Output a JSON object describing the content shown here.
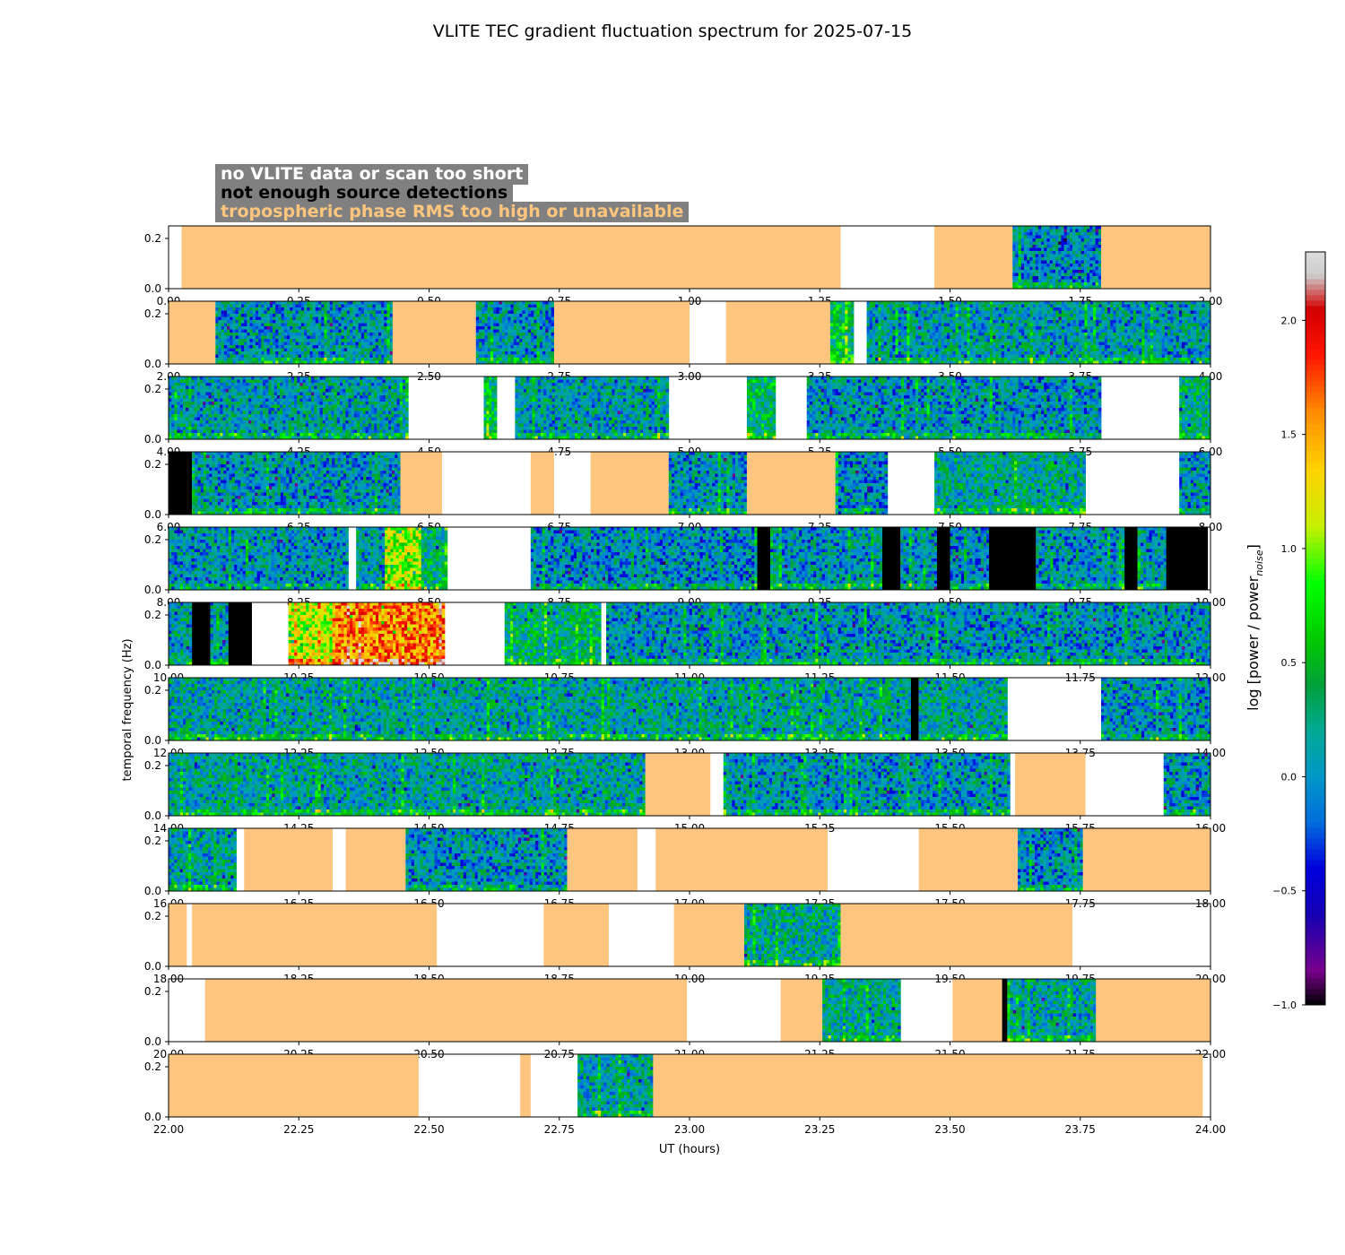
{
  "title": "VLITE TEC gradient fluctuation spectrum for 2025-07-15",
  "legend": [
    {
      "label": "no VLITE data or scan too short",
      "text_color": "#ffffff"
    },
    {
      "label": "not enough source detections",
      "text_color": "#000000"
    },
    {
      "label": "tropospheric phase RMS too high or unavailable",
      "text_color": "#fdc57e"
    }
  ],
  "colors": {
    "no_data": "#ffffff",
    "not_enough_detections": "#000000",
    "troposphere": "#fdc57e",
    "legend_bg": "#808080"
  },
  "chart_data": {
    "type": "heatmap",
    "title": "VLITE TEC gradient fluctuation spectrum for 2025-07-15",
    "xlabel": "UT (hours)",
    "ylabel": "temporal frequency (Hz)",
    "ylim": [
      0,
      0.25
    ],
    "yticks": [
      "0.0",
      "0.2"
    ],
    "colorbar": {
      "label": "log [power / power",
      "label_sub": "noise",
      "label_end": "]",
      "range": [
        -1.0,
        2.3
      ],
      "ticks": [
        "−1.0",
        "−0.5",
        "0.0",
        "0.5",
        "1.0",
        "1.5",
        "2.0"
      ],
      "tick_values": [
        -1.0,
        -0.5,
        0.0,
        0.5,
        1.0,
        1.5,
        2.0
      ]
    },
    "rows": [
      {
        "range": [
          0,
          2
        ],
        "xticks": [
          "0.00",
          "0.25",
          "0.50",
          "0.75",
          "1.00",
          "1.25",
          "1.50",
          "1.75",
          "2.00"
        ],
        "segments": [
          {
            "start": 0.0,
            "end": 0.025,
            "kind": "white"
          },
          {
            "start": 0.025,
            "end": 1.29,
            "kind": "orange"
          },
          {
            "start": 1.29,
            "end": 1.47,
            "kind": "white"
          },
          {
            "start": 1.47,
            "end": 1.62,
            "kind": "orange"
          },
          {
            "start": 1.62,
            "end": 1.79,
            "kind": "data",
            "level": 0.0
          },
          {
            "start": 1.79,
            "end": 2.0,
            "kind": "orange"
          }
        ]
      },
      {
        "range": [
          2,
          4
        ],
        "xticks": [
          "2.00",
          "2.25",
          "2.50",
          "2.75",
          "3.00",
          "3.25",
          "3.50",
          "3.75",
          "4.00"
        ],
        "segments": [
          {
            "start": 2.0,
            "end": 2.09,
            "kind": "orange"
          },
          {
            "start": 2.09,
            "end": 2.43,
            "kind": "data",
            "level": 0.05
          },
          {
            "start": 2.43,
            "end": 2.59,
            "kind": "orange"
          },
          {
            "start": 2.59,
            "end": 2.74,
            "kind": "data",
            "level": 0.05
          },
          {
            "start": 2.74,
            "end": 3.0,
            "kind": "orange"
          },
          {
            "start": 3.0,
            "end": 3.07,
            "kind": "white"
          },
          {
            "start": 3.07,
            "end": 3.27,
            "kind": "orange"
          },
          {
            "start": 3.27,
            "end": 3.315,
            "kind": "data",
            "level": 0.5
          },
          {
            "start": 3.315,
            "end": 3.34,
            "kind": "white"
          },
          {
            "start": 3.34,
            "end": 4.0,
            "kind": "data",
            "level": 0.1
          }
        ]
      },
      {
        "range": [
          4,
          6
        ],
        "xticks": [
          "4.00",
          "4.25",
          "4.50",
          "4.75",
          "5.00",
          "5.25",
          "5.50",
          "5.75",
          "6.00"
        ],
        "segments": [
          {
            "start": 4.0,
            "end": 4.46,
            "kind": "data",
            "level": 0.1
          },
          {
            "start": 4.46,
            "end": 4.605,
            "kind": "white"
          },
          {
            "start": 4.605,
            "end": 4.63,
            "kind": "data",
            "level": 0.4
          },
          {
            "start": 4.63,
            "end": 4.665,
            "kind": "white"
          },
          {
            "start": 4.665,
            "end": 4.96,
            "kind": "data",
            "level": 0.1
          },
          {
            "start": 4.96,
            "end": 5.11,
            "kind": "white"
          },
          {
            "start": 5.11,
            "end": 5.165,
            "kind": "data",
            "level": 0.4
          },
          {
            "start": 5.165,
            "end": 5.225,
            "kind": "white"
          },
          {
            "start": 5.225,
            "end": 5.79,
            "kind": "data",
            "level": 0.05
          },
          {
            "start": 5.79,
            "end": 5.94,
            "kind": "white"
          },
          {
            "start": 5.94,
            "end": 6.0,
            "kind": "data",
            "level": 0.3
          }
        ]
      },
      {
        "range": [
          6,
          8
        ],
        "xticks": [
          "6.00",
          "6.25",
          "6.50",
          "6.75",
          "7.00",
          "7.25",
          "7.50",
          "7.75",
          "8.00"
        ],
        "segments": [
          {
            "start": 6.0,
            "end": 6.045,
            "kind": "black"
          },
          {
            "start": 6.045,
            "end": 6.445,
            "kind": "data",
            "level": 0.05
          },
          {
            "start": 6.445,
            "end": 6.525,
            "kind": "orange"
          },
          {
            "start": 6.525,
            "end": 6.695,
            "kind": "white"
          },
          {
            "start": 6.695,
            "end": 6.74,
            "kind": "orange"
          },
          {
            "start": 6.74,
            "end": 6.81,
            "kind": "white"
          },
          {
            "start": 6.81,
            "end": 6.96,
            "kind": "orange"
          },
          {
            "start": 6.96,
            "end": 7.11,
            "kind": "data",
            "level": 0.05
          },
          {
            "start": 7.11,
            "end": 7.28,
            "kind": "orange"
          },
          {
            "start": 7.28,
            "end": 7.38,
            "kind": "data",
            "level": 0.0
          },
          {
            "start": 7.38,
            "end": 7.47,
            "kind": "white"
          },
          {
            "start": 7.47,
            "end": 7.76,
            "kind": "data",
            "level": 0.2
          },
          {
            "start": 7.76,
            "end": 7.94,
            "kind": "white"
          },
          {
            "start": 7.94,
            "end": 8.0,
            "kind": "data",
            "level": 0.05
          }
        ]
      },
      {
        "range": [
          8,
          10
        ],
        "xticks": [
          "8.00",
          "8.25",
          "8.50",
          "8.75",
          "9.00",
          "9.25",
          "9.50",
          "9.75",
          "10.00"
        ],
        "segments": [
          {
            "start": 8.0,
            "end": 8.345,
            "kind": "data",
            "level": 0.05
          },
          {
            "start": 8.345,
            "end": 8.36,
            "kind": "white"
          },
          {
            "start": 8.36,
            "end": 8.415,
            "kind": "data",
            "level": 0.1
          },
          {
            "start": 8.415,
            "end": 8.485,
            "kind": "data",
            "level": 1.0
          },
          {
            "start": 8.485,
            "end": 8.535,
            "kind": "data",
            "level": 0.3
          },
          {
            "start": 8.535,
            "end": 8.695,
            "kind": "white"
          },
          {
            "start": 8.695,
            "end": 9.13,
            "kind": "data",
            "level": 0.0
          },
          {
            "start": 9.13,
            "end": 9.155,
            "kind": "black"
          },
          {
            "start": 9.155,
            "end": 9.37,
            "kind": "data",
            "level": 0.05
          },
          {
            "start": 9.37,
            "end": 9.405,
            "kind": "black"
          },
          {
            "start": 9.405,
            "end": 9.475,
            "kind": "data",
            "level": 0.05
          },
          {
            "start": 9.475,
            "end": 9.5,
            "kind": "black"
          },
          {
            "start": 9.5,
            "end": 9.575,
            "kind": "data",
            "level": 0.0
          },
          {
            "start": 9.575,
            "end": 9.665,
            "kind": "black"
          },
          {
            "start": 9.665,
            "end": 9.835,
            "kind": "data",
            "level": 0.05
          },
          {
            "start": 9.835,
            "end": 9.86,
            "kind": "black"
          },
          {
            "start": 9.86,
            "end": 9.915,
            "kind": "data",
            "level": 0.05
          },
          {
            "start": 9.915,
            "end": 9.995,
            "kind": "black"
          },
          {
            "start": 9.995,
            "end": 10.0,
            "kind": "white"
          }
        ]
      },
      {
        "range": [
          10,
          12
        ],
        "xticks": [
          "10.00",
          "10.25",
          "10.50",
          "10.75",
          "11.00",
          "11.25",
          "11.50",
          "11.75",
          "12.00"
        ],
        "segments": [
          {
            "start": 10.0,
            "end": 10.045,
            "kind": "data",
            "level": 0.1
          },
          {
            "start": 10.045,
            "end": 10.08,
            "kind": "black"
          },
          {
            "start": 10.08,
            "end": 10.115,
            "kind": "data",
            "level": 0.1
          },
          {
            "start": 10.115,
            "end": 10.16,
            "kind": "black"
          },
          {
            "start": 10.16,
            "end": 10.23,
            "kind": "white"
          },
          {
            "start": 10.23,
            "end": 10.32,
            "kind": "data",
            "level": 1.1
          },
          {
            "start": 10.32,
            "end": 10.53,
            "kind": "data",
            "level": 1.6
          },
          {
            "start": 10.53,
            "end": 10.645,
            "kind": "white"
          },
          {
            "start": 10.645,
            "end": 10.83,
            "kind": "data",
            "level": 0.3
          },
          {
            "start": 10.83,
            "end": 10.84,
            "kind": "white"
          },
          {
            "start": 10.84,
            "end": 12.0,
            "kind": "data",
            "level": 0.05
          }
        ]
      },
      {
        "range": [
          12,
          14
        ],
        "xticks": [
          "12.00",
          "12.25",
          "12.50",
          "12.75",
          "13.00",
          "13.25",
          "13.50",
          "13.75",
          "14.00"
        ],
        "segments": [
          {
            "start": 12.0,
            "end": 13.425,
            "kind": "data",
            "level": 0.15
          },
          {
            "start": 13.425,
            "end": 13.44,
            "kind": "black"
          },
          {
            "start": 13.44,
            "end": 13.61,
            "kind": "data",
            "level": 0.15
          },
          {
            "start": 13.61,
            "end": 13.79,
            "kind": "white"
          },
          {
            "start": 13.79,
            "end": 14.0,
            "kind": "data",
            "level": 0.05
          }
        ]
      },
      {
        "range": [
          14,
          16
        ],
        "xticks": [
          "14.00",
          "14.25",
          "14.50",
          "14.75",
          "15.00",
          "15.25",
          "15.50",
          "15.75",
          "16.00"
        ],
        "segments": [
          {
            "start": 14.0,
            "end": 14.915,
            "kind": "data",
            "level": 0.15
          },
          {
            "start": 14.915,
            "end": 15.04,
            "kind": "orange"
          },
          {
            "start": 15.04,
            "end": 15.065,
            "kind": "white"
          },
          {
            "start": 15.065,
            "end": 15.615,
            "kind": "data",
            "level": 0.05
          },
          {
            "start": 15.615,
            "end": 15.625,
            "kind": "white"
          },
          {
            "start": 15.625,
            "end": 15.76,
            "kind": "orange"
          },
          {
            "start": 15.76,
            "end": 15.91,
            "kind": "white"
          },
          {
            "start": 15.91,
            "end": 16.0,
            "kind": "data",
            "level": 0.05
          }
        ]
      },
      {
        "range": [
          16,
          18
        ],
        "xticks": [
          "16.00",
          "16.25",
          "16.50",
          "16.75",
          "17.00",
          "17.25",
          "17.50",
          "17.75",
          "18.00"
        ],
        "segments": [
          {
            "start": 16.0,
            "end": 16.13,
            "kind": "data",
            "level": 0.15
          },
          {
            "start": 16.13,
            "end": 16.145,
            "kind": "white"
          },
          {
            "start": 16.145,
            "end": 16.315,
            "kind": "orange"
          },
          {
            "start": 16.315,
            "end": 16.34,
            "kind": "white"
          },
          {
            "start": 16.34,
            "end": 16.455,
            "kind": "orange"
          },
          {
            "start": 16.455,
            "end": 16.765,
            "kind": "data",
            "level": 0.05
          },
          {
            "start": 16.765,
            "end": 16.9,
            "kind": "orange"
          },
          {
            "start": 16.9,
            "end": 16.935,
            "kind": "white"
          },
          {
            "start": 16.935,
            "end": 17.265,
            "kind": "orange"
          },
          {
            "start": 17.265,
            "end": 17.44,
            "kind": "white"
          },
          {
            "start": 17.44,
            "end": 17.63,
            "kind": "orange"
          },
          {
            "start": 17.63,
            "end": 17.755,
            "kind": "data",
            "level": 0.0
          },
          {
            "start": 17.755,
            "end": 18.0,
            "kind": "orange"
          }
        ]
      },
      {
        "range": [
          18,
          20
        ],
        "xticks": [
          "18.00",
          "18.25",
          "18.50",
          "18.75",
          "19.00",
          "19.25",
          "19.50",
          "19.75",
          "20.00"
        ],
        "segments": [
          {
            "start": 18.0,
            "end": 18.035,
            "kind": "orange"
          },
          {
            "start": 18.035,
            "end": 18.045,
            "kind": "white"
          },
          {
            "start": 18.045,
            "end": 18.515,
            "kind": "orange"
          },
          {
            "start": 18.515,
            "end": 18.72,
            "kind": "white"
          },
          {
            "start": 18.72,
            "end": 18.845,
            "kind": "orange"
          },
          {
            "start": 18.845,
            "end": 18.97,
            "kind": "white"
          },
          {
            "start": 18.97,
            "end": 19.105,
            "kind": "orange"
          },
          {
            "start": 19.105,
            "end": 19.29,
            "kind": "data",
            "level": 0.2
          },
          {
            "start": 19.29,
            "end": 19.735,
            "kind": "orange"
          },
          {
            "start": 19.735,
            "end": 20.0,
            "kind": "white"
          }
        ]
      },
      {
        "range": [
          20,
          22
        ],
        "xticks": [
          "20.00",
          "20.25",
          "20.50",
          "20.75",
          "21.00",
          "21.25",
          "21.50",
          "21.75",
          "22.00"
        ],
        "segments": [
          {
            "start": 20.0,
            "end": 20.07,
            "kind": "white"
          },
          {
            "start": 20.07,
            "end": 20.995,
            "kind": "orange"
          },
          {
            "start": 20.995,
            "end": 21.175,
            "kind": "white"
          },
          {
            "start": 21.175,
            "end": 21.255,
            "kind": "orange"
          },
          {
            "start": 21.255,
            "end": 21.405,
            "kind": "data",
            "level": 0.2
          },
          {
            "start": 21.405,
            "end": 21.505,
            "kind": "white"
          },
          {
            "start": 21.505,
            "end": 21.6,
            "kind": "orange"
          },
          {
            "start": 21.6,
            "end": 21.61,
            "kind": "black"
          },
          {
            "start": 21.61,
            "end": 21.78,
            "kind": "data",
            "level": 0.15
          },
          {
            "start": 21.78,
            "end": 22.0,
            "kind": "orange"
          }
        ]
      },
      {
        "range": [
          22,
          24
        ],
        "xticks": [
          "22.00",
          "22.25",
          "22.50",
          "22.75",
          "23.00",
          "23.25",
          "23.50",
          "23.75",
          "24.00"
        ],
        "segments": [
          {
            "start": 22.0,
            "end": 22.48,
            "kind": "orange"
          },
          {
            "start": 22.48,
            "end": 22.675,
            "kind": "white"
          },
          {
            "start": 22.675,
            "end": 22.695,
            "kind": "orange"
          },
          {
            "start": 22.695,
            "end": 22.785,
            "kind": "white"
          },
          {
            "start": 22.785,
            "end": 22.93,
            "kind": "data",
            "level": 0.15
          },
          {
            "start": 22.93,
            "end": 23.985,
            "kind": "orange"
          },
          {
            "start": 23.985,
            "end": 24.0,
            "kind": "white"
          }
        ]
      }
    ]
  }
}
